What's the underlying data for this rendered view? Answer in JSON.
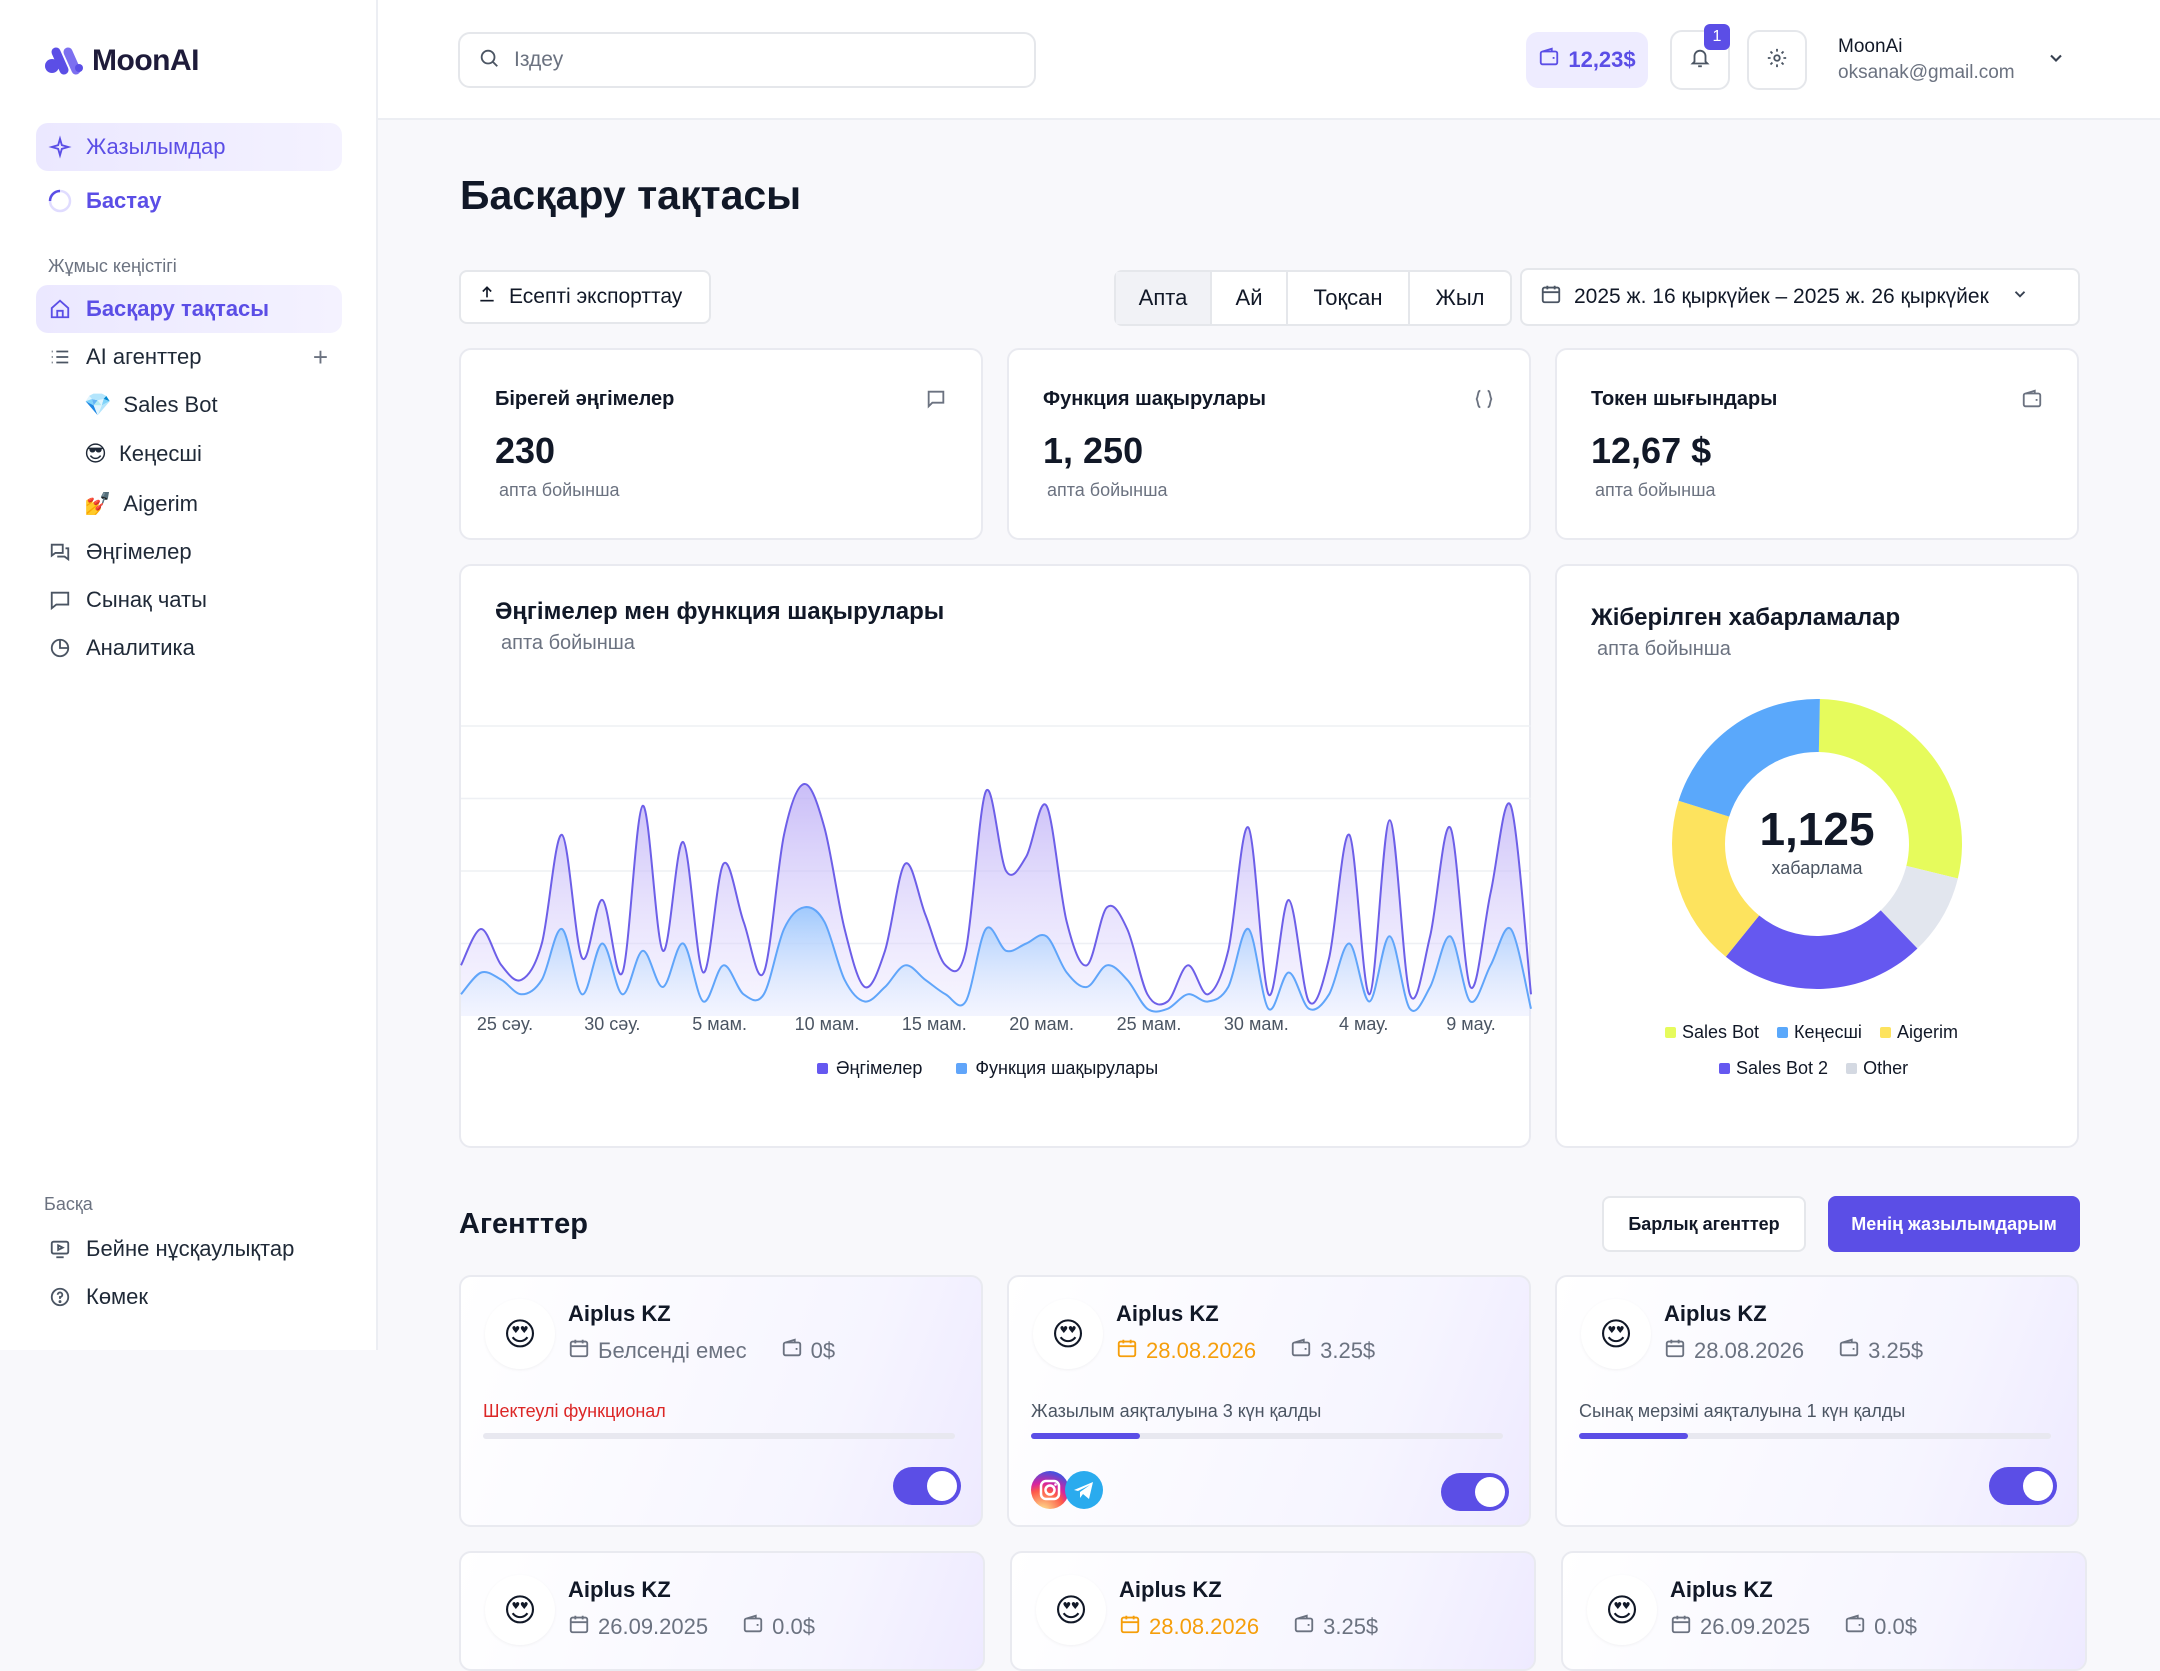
{
  "app": {
    "name": "MoonAI"
  },
  "sidebar": {
    "top_items": [
      {
        "label": "Жазылымдар"
      },
      {
        "label": "Бастау"
      }
    ],
    "workspace_label": "Жұмыс кеңістігі",
    "workspace_items": [
      {
        "label": "Басқару тақтасы"
      },
      {
        "label": "AI агенттер"
      }
    ],
    "agents": [
      {
        "emoji": "💎",
        "label": "Sales Bot"
      },
      {
        "emoji": "😎",
        "label": "Кеңесші"
      },
      {
        "emoji": "💅",
        "label": "Aigerim"
      }
    ],
    "more_items": [
      {
        "label": "Әңгімелер"
      },
      {
        "label": "Сынақ чаты"
      },
      {
        "label": "Аналитика"
      }
    ],
    "other_label": "Басқа",
    "other_items": [
      {
        "label": "Бейне нұсқаулықтар"
      },
      {
        "label": "Көмек"
      }
    ]
  },
  "header": {
    "search_placeholder": "Іздеу",
    "balance": "12,23$",
    "notifications_count": "1",
    "user_name": "MoonAi",
    "user_email": "oksanak@gmail.com"
  },
  "main": {
    "title": "Басқару тақтасы",
    "export_label": "Есепті экспорттау",
    "periods": [
      "Апта",
      "Ай",
      "Тоқсан",
      "Жыл"
    ],
    "date_range": "2025 ж. 16 қыркүйек – 2025 ж. 26 қыркүйек"
  },
  "stats": [
    {
      "title": "Бірегей әңгімелер",
      "value": "230",
      "sub": "апта бойынша",
      "icon": "message-icon"
    },
    {
      "title": "Функция шақырулары",
      "value": "1, 250",
      "sub": "апта бойынша",
      "icon": "braces-icon"
    },
    {
      "title": "Токен шығындары",
      "value": "12,67 $",
      "sub": "апта бойынша",
      "icon": "wallet-icon"
    }
  ],
  "area_chart": {
    "title": "Әңгімелер мен функция шақырулары",
    "sub": "апта бойынша",
    "legend": [
      "Әңгімелер",
      "Функция шақырулары"
    ]
  },
  "donut_chart": {
    "title": "Жіберілген хабарламалар",
    "sub": "апта бойынша",
    "total": "1,125",
    "total_label": "хабарлама",
    "legend": [
      "Sales Bot",
      "Кеңесші",
      "Aigerim",
      "Sales Bot 2",
      "Other"
    ]
  },
  "chart_data": [
    {
      "type": "area",
      "title": "Әңгімелер мен функция шақырулары",
      "x_ticks": [
        "25 сәу.",
        "30 сәу.",
        "5 мам.",
        "10 мам.",
        "15 мам.",
        "20 мам.",
        "25 мам.",
        "30 мам.",
        "4 мау.",
        "9 мау."
      ],
      "ylim": [
        0,
        4
      ],
      "grid": true,
      "legend_position": "bottom",
      "series": [
        {
          "name": "Әңгімелер",
          "color": "#6d5fe8",
          "values": [
            0.7,
            1.2,
            0.7,
            0.5,
            1.0,
            2.5,
            0.8,
            1.6,
            0.6,
            2.9,
            0.9,
            2.4,
            0.6,
            2.1,
            1.3,
            0.6,
            2.5,
            3.2,
            2.6,
            1.2,
            0.4,
            0.9,
            2.1,
            1.4,
            0.7,
            0.9,
            3.1,
            2.0,
            2.2,
            2.9,
            1.3,
            0.7,
            1.5,
            1.2,
            0.3,
            0.2,
            0.7,
            0.3,
            0.9,
            2.6,
            0.3,
            1.6,
            0.2,
            0.8,
            2.5,
            0.3,
            2.7,
            0.3,
            1.1,
            2.6,
            0.4,
            1.7,
            2.9,
            0.3
          ]
        },
        {
          "name": "Функция шақырулары",
          "color": "#60a5fa",
          "values": [
            0.3,
            0.6,
            0.5,
            0.3,
            0.5,
            1.2,
            0.3,
            1.0,
            0.3,
            0.9,
            0.4,
            1.0,
            0.2,
            0.7,
            0.3,
            0.3,
            1.2,
            1.5,
            1.3,
            0.5,
            0.2,
            0.4,
            0.7,
            0.5,
            0.3,
            0.2,
            1.2,
            0.9,
            1.0,
            1.1,
            0.6,
            0.4,
            0.7,
            0.5,
            0.1,
            0.1,
            0.3,
            0.2,
            0.4,
            1.2,
            0.1,
            0.6,
            0.1,
            0.3,
            1.0,
            0.2,
            1.1,
            0.1,
            0.4,
            1.1,
            0.2,
            0.7,
            1.2,
            0.1
          ]
        }
      ]
    },
    {
      "type": "pie",
      "title": "Жіберілген хабарламалар",
      "categories": [
        "Sales Bot",
        "Other",
        "Sales Bot 2",
        "Aigerim",
        "Кеңесші"
      ],
      "values": [
        0.285,
        0.09,
        0.23,
        0.19,
        0.205
      ],
      "colors": [
        "#e6fb5c",
        "#e2e6ee",
        "#6558f0",
        "#fde35e",
        "#5aa8fb"
      ],
      "legend_position": "bottom"
    }
  ],
  "agents_section": {
    "title": "Агенттер",
    "all_label": "Барлық агенттер",
    "mine_label": "Менің жазылымдарым"
  },
  "agent_cards": [
    {
      "name": "Aiplus KZ",
      "date": "Белсенді емес",
      "date_orange": false,
      "price": "0$",
      "status": "Шектеулі функционал",
      "status_red": true,
      "progress": 0,
      "social": false,
      "emoji": "😍"
    },
    {
      "name": "Aiplus KZ",
      "date": "28.08.2026",
      "date_orange": true,
      "price": "3.25$",
      "status": "Жазылым аяқталуына 3 күн қалды",
      "status_red": false,
      "progress": 0.23,
      "social": true,
      "emoji": "😍"
    },
    {
      "name": "Aiplus KZ",
      "date": "28.08.2026",
      "date_orange": false,
      "price": "3.25$",
      "status": "Сынақ мерзімі аяқталуына 1 күн қалды",
      "status_red": false,
      "progress": 0.23,
      "social": false,
      "emoji": "😍"
    },
    {
      "name": "Aiplus KZ",
      "date": "26.09.2025",
      "date_orange": false,
      "price": "0.0$",
      "emoji": "😍"
    },
    {
      "name": "Aiplus KZ",
      "date": "28.08.2026",
      "date_orange": true,
      "price": "3.25$",
      "emoji": "😍"
    },
    {
      "name": "Aiplus KZ",
      "date": "26.09.2025",
      "date_orange": false,
      "price": "0.0$",
      "emoji": "😍"
    }
  ]
}
